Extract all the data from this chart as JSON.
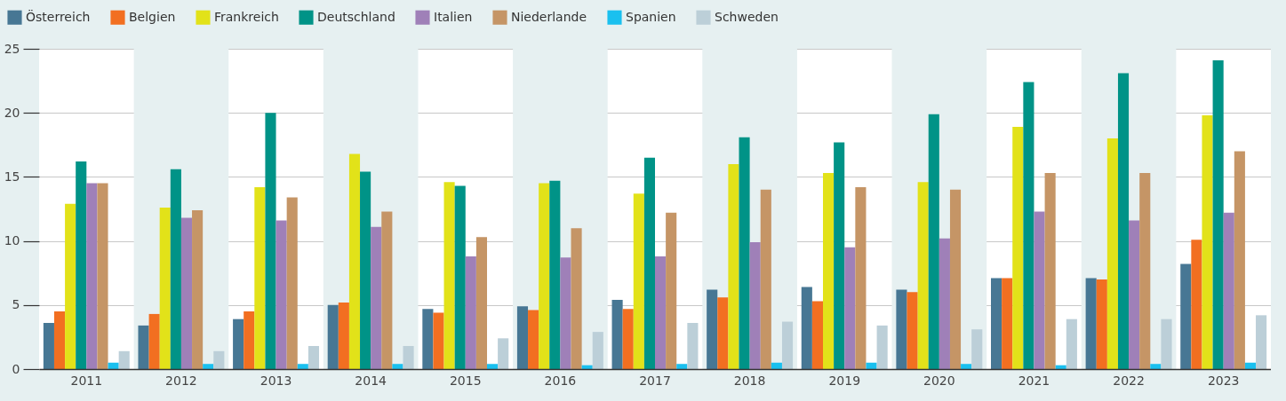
{
  "chart_data": {
    "type": "bar",
    "categories": [
      "2011",
      "2012",
      "2013",
      "2014",
      "2015",
      "2016",
      "2017",
      "2018",
      "2019",
      "2020",
      "2021",
      "2022",
      "2023"
    ],
    "series": [
      {
        "name": "Österreich",
        "color": "#477794",
        "values": [
          3.6,
          3.4,
          3.9,
          5.0,
          4.7,
          4.9,
          5.4,
          6.2,
          6.4,
          6.2,
          7.1,
          7.1,
          8.2
        ]
      },
      {
        "name": "Belgien",
        "color": "#f26f21",
        "values": [
          4.5,
          4.3,
          4.5,
          5.2,
          4.4,
          4.6,
          4.7,
          5.6,
          5.3,
          6.0,
          7.1,
          7.0,
          10.1
        ]
      },
      {
        "name": "Frankreich",
        "color": "#e2e219",
        "values": [
          12.9,
          12.6,
          14.2,
          16.8,
          14.6,
          14.5,
          13.7,
          16.0,
          15.3,
          14.6,
          18.9,
          18.0,
          19.8
        ]
      },
      {
        "name": "Deutschland",
        "color": "#009387",
        "values": [
          16.2,
          15.6,
          20.0,
          15.4,
          14.3,
          14.7,
          16.5,
          18.1,
          17.7,
          19.9,
          22.4,
          23.1,
          24.1
        ]
      },
      {
        "name": "Italien",
        "color": "#9f80b8",
        "values": [
          14.5,
          11.8,
          11.6,
          11.1,
          8.8,
          8.7,
          8.8,
          9.9,
          9.5,
          10.2,
          12.3,
          11.6,
          12.2
        ]
      },
      {
        "name": "Niederlande",
        "color": "#c59566",
        "values": [
          14.5,
          12.4,
          13.4,
          12.3,
          10.3,
          11.0,
          12.2,
          14.0,
          14.2,
          14.0,
          15.3,
          15.3,
          17.0
        ]
      },
      {
        "name": "Spanien",
        "color": "#1ac0ef",
        "values": [
          0.5,
          0.4,
          0.4,
          0.4,
          0.4,
          0.3,
          0.4,
          0.5,
          0.5,
          0.4,
          0.3,
          0.4,
          0.5
        ]
      },
      {
        "name": "Schweden",
        "color": "#bccfd8",
        "values": [
          1.4,
          1.4,
          1.8,
          1.8,
          2.4,
          2.9,
          3.6,
          3.7,
          3.4,
          3.1,
          3.9,
          3.9,
          4.2
        ]
      }
    ],
    "ylim": [
      0,
      25
    ],
    "yticks": [
      0,
      5,
      10,
      15,
      20,
      25
    ],
    "grid": "y",
    "legend": "top left",
    "bands": [
      {
        "axis": "x",
        "from": "2012",
        "to": "2012",
        "color": "#e6f0f1"
      },
      {
        "axis": "x",
        "from": "2014",
        "to": "2014",
        "color": "#e6f0f1"
      },
      {
        "axis": "x",
        "from": "2016",
        "to": "2016",
        "color": "#e6f0f1"
      },
      {
        "axis": "x",
        "from": "2018",
        "to": "2018",
        "color": "#e6f0f1"
      },
      {
        "axis": "x",
        "from": "2020",
        "to": "2020",
        "color": "#e6f0f1"
      },
      {
        "axis": "x",
        "from": "2022",
        "to": "2022",
        "color": "#e6f0f1"
      }
    ]
  }
}
